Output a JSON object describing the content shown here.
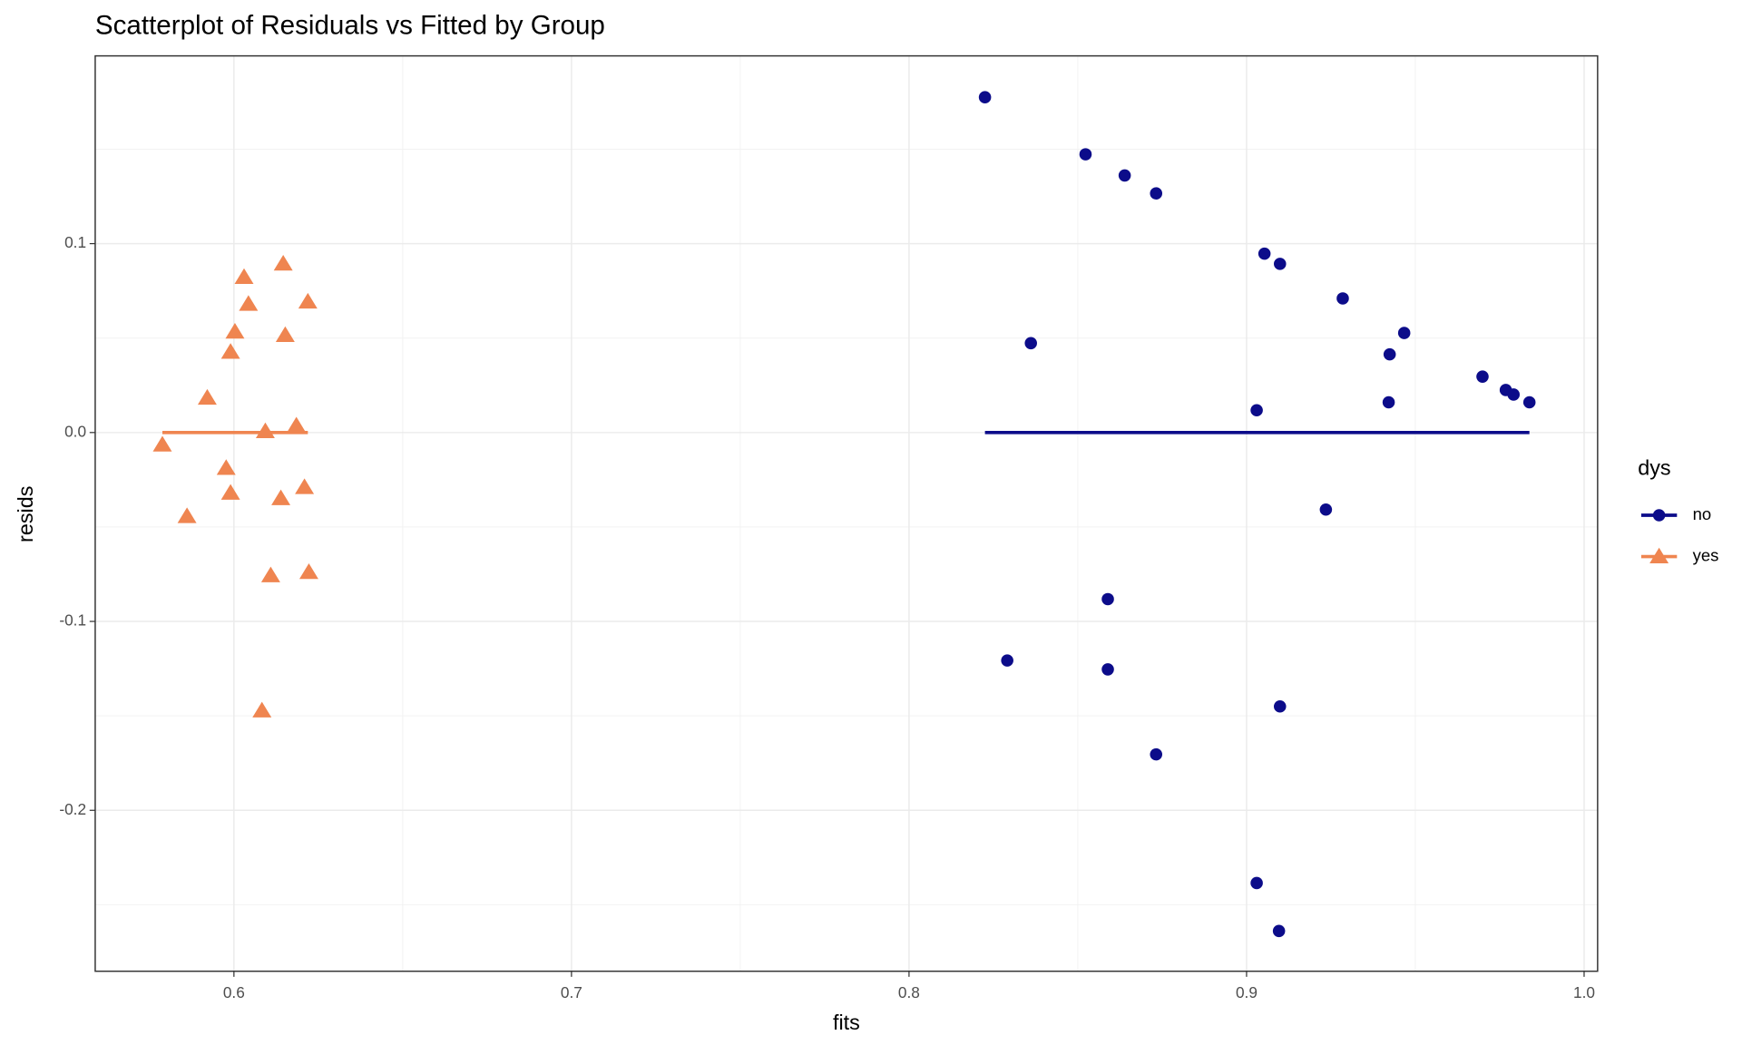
{
  "chart_data": {
    "type": "scatter",
    "title": "Scatterplot of Residuals vs Fitted by Group",
    "xlabel": "fits",
    "ylabel": "resids",
    "xlim": [
      0.5589,
      1.004
    ],
    "ylim": [
      -0.2852,
      0.1994
    ],
    "xticks": [
      0.6,
      0.7,
      0.8,
      0.9,
      {
        "value": 1.0,
        "label": "1.0"
      }
    ],
    "yticks": [
      {
        "value": -0.2,
        "label": "-0.2"
      },
      {
        "value": -0.1,
        "label": "-0.1"
      },
      {
        "value": 0.0,
        "label": "0.0"
      },
      0.1
    ],
    "xminor_ticks": [
      0.65,
      0.75,
      0.85,
      0.95
    ],
    "yminor_ticks": [
      -0.25,
      -0.15,
      -0.05,
      0.05,
      0.15
    ],
    "grid": true,
    "legend_title": "dys",
    "legend_position": "right",
    "series": [
      {
        "name": "no",
        "color": "#0c0c8a",
        "shape": "circle",
        "x": [
          0.8225,
          0.8523,
          0.8639,
          0.8732,
          0.8361,
          0.9053,
          0.9099,
          0.9285,
          0.9467,
          0.9424,
          0.9699,
          0.9768,
          0.9791,
          0.9838,
          0.9421,
          0.903,
          0.9235,
          0.8589,
          0.8291,
          0.8589,
          0.9099,
          0.8732,
          0.903,
          0.9096
        ],
        "values": [
          0.1775,
          0.1473,
          0.1361,
          0.1266,
          0.0473,
          0.0947,
          0.0893,
          0.071,
          0.0527,
          0.0414,
          0.0296,
          0.0225,
          0.0201,
          0.016,
          0.016,
          0.0118,
          -0.0408,
          -0.0882,
          -0.1207,
          -0.1254,
          -0.145,
          -0.1704,
          -0.2385,
          -0.2639
        ],
        "fit": {
          "x": [
            0.8225,
            0.9838
          ],
          "y": [
            0,
            0
          ]
        }
      },
      {
        "name": "yes",
        "color": "#ef8550",
        "shape": "triangle",
        "x": [
          0.6146,
          0.603,
          0.6219,
          0.6043,
          0.6003,
          0.6152,
          0.599,
          0.5921,
          0.6185,
          0.6093,
          0.5788,
          0.5977,
          0.6209,
          0.599,
          0.6139,
          0.5861,
          0.6222,
          0.6109,
          0.6083
        ],
        "values": [
          0.0893,
          0.0822,
          0.0692,
          0.068,
          0.0533,
          0.0515,
          0.0426,
          0.0183,
          0.0036,
          0.0006,
          -0.0065,
          -0.0189,
          -0.029,
          -0.032,
          -0.0349,
          -0.0444,
          -0.074,
          -0.0757,
          -0.1473
        ],
        "fit": {
          "x": [
            0.5788,
            0.6219
          ],
          "y": [
            0,
            0
          ]
        }
      }
    ]
  }
}
